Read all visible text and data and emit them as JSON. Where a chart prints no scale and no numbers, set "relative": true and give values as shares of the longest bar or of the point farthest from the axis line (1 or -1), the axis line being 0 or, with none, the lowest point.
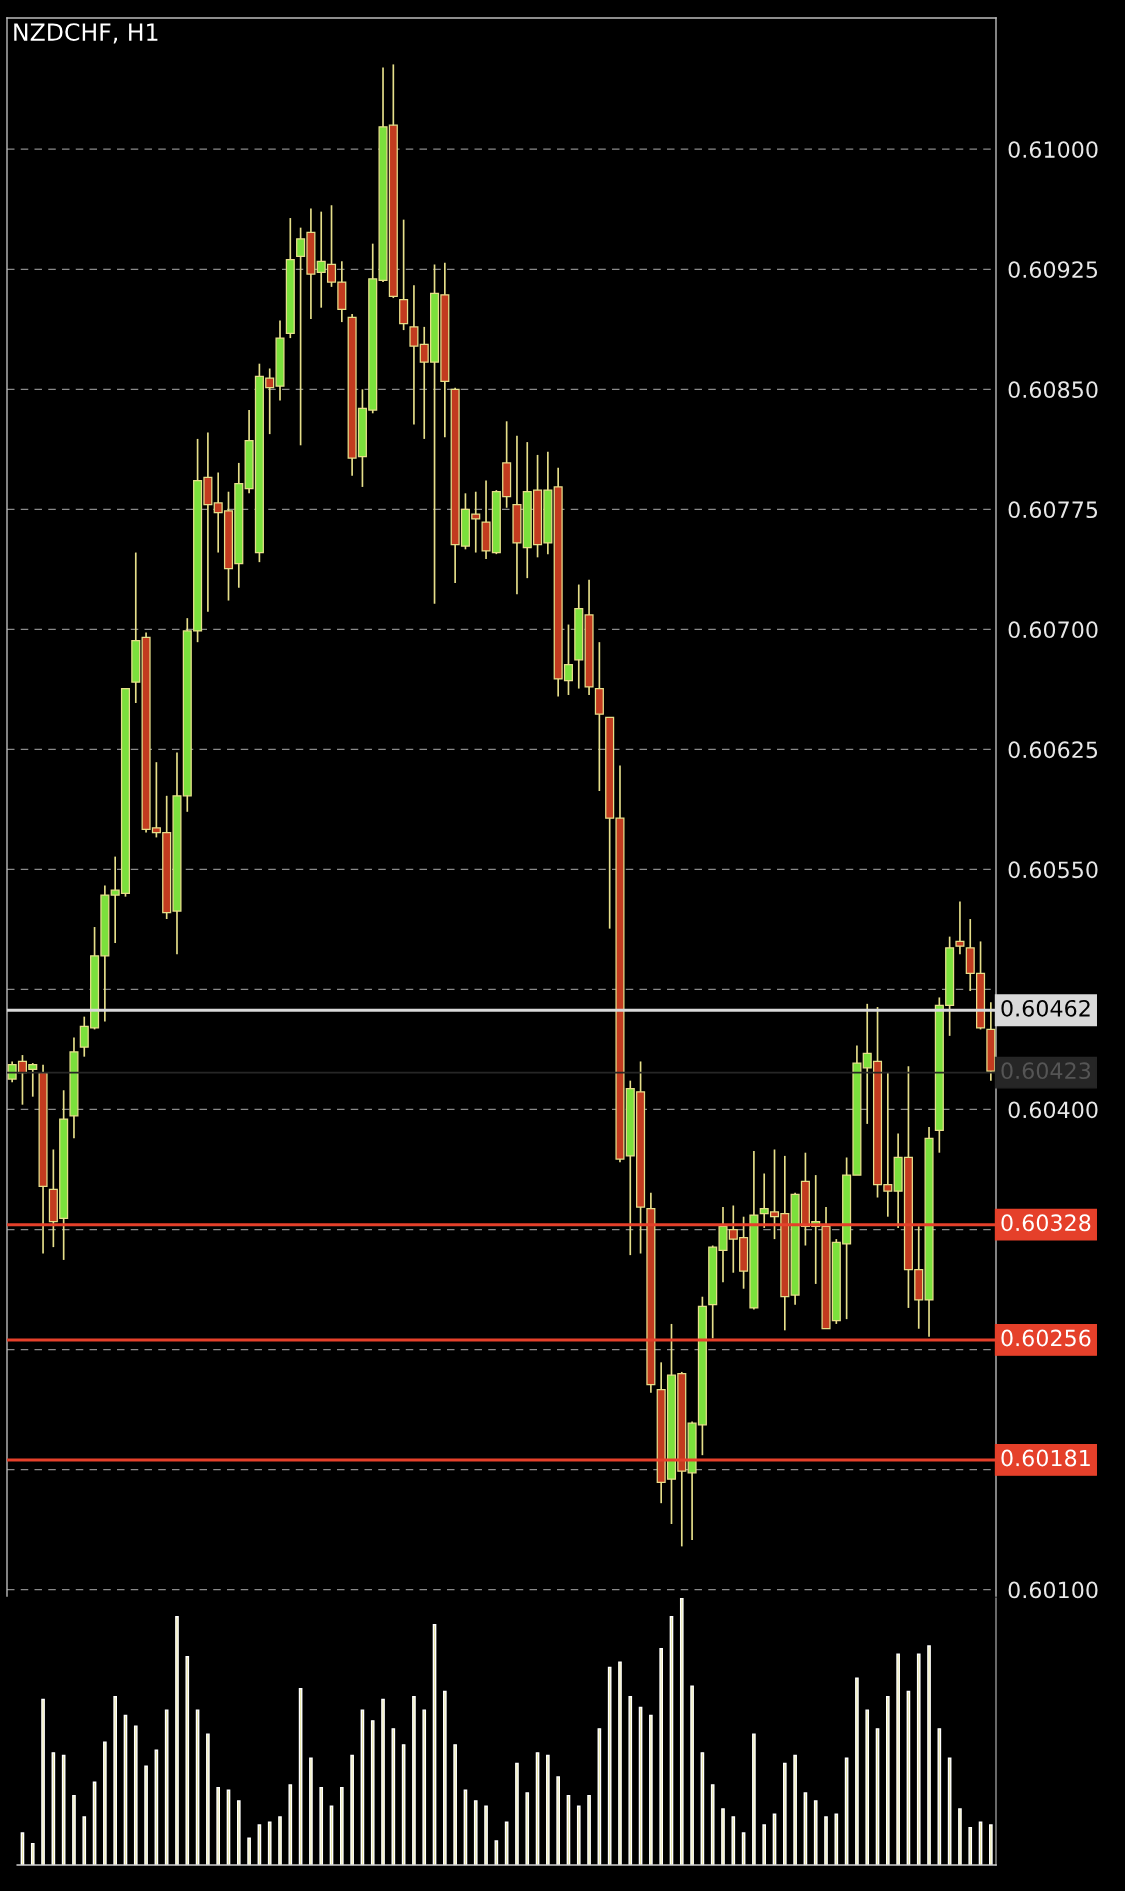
{
  "chart_data": [
    {
      "type": "candlestick",
      "title": "NZDCHF, H1",
      "categories": [
        null,
        null,
        null,
        null,
        null,
        null,
        null,
        null,
        null,
        null,
        null,
        null,
        null,
        null,
        null,
        null,
        null,
        null,
        null,
        null,
        null,
        null,
        null,
        null,
        null,
        null,
        null,
        null,
        null,
        null,
        null,
        null,
        null,
        null,
        null,
        null,
        null,
        null,
        null,
        null,
        null,
        null,
        null,
        null,
        null,
        null,
        null,
        null,
        null,
        null,
        null,
        null,
        null,
        null,
        null,
        null,
        null,
        null,
        null,
        null,
        null,
        null,
        null,
        null,
        null,
        null,
        null,
        null,
        null,
        null,
        null,
        null,
        null,
        null,
        null,
        null,
        null,
        null,
        null,
        null,
        null,
        null,
        null,
        null,
        null,
        null,
        null,
        null,
        null,
        null,
        null,
        null,
        null,
        null,
        null,
        null
      ],
      "ohlc": [
        [
          0.60419,
          0.6043,
          0.60417,
          0.60428
        ],
        [
          0.6043,
          0.60434,
          0.60403,
          0.60423
        ],
        [
          0.60425,
          0.60429,
          0.60408,
          0.60427
        ],
        [
          0.60423,
          0.60428,
          0.6031,
          0.60352
        ],
        [
          0.6035,
          0.60375,
          0.60314,
          0.6033
        ],
        [
          0.60332,
          0.60412,
          0.60306,
          0.60394
        ],
        [
          0.60396,
          0.60445,
          0.60382,
          0.60436
        ],
        [
          0.60439,
          0.60458,
          0.60433,
          0.60452
        ],
        [
          0.60451,
          0.60514,
          0.6045,
          0.60496
        ],
        [
          0.60496,
          0.6054,
          0.60455,
          0.60534
        ],
        [
          0.60534,
          0.60558,
          0.60504,
          0.60534
        ],
        [
          0.60535,
          0.60663,
          0.60533,
          0.60663
        ],
        [
          0.60667,
          0.60748,
          0.60654,
          0.60693
        ],
        [
          0.60695,
          0.60698,
          0.60573,
          0.60575
        ],
        [
          0.60574,
          0.60617,
          0.6057,
          0.60573
        ],
        [
          0.60573,
          0.60596,
          0.60519,
          0.60523
        ],
        [
          0.60524,
          0.60623,
          0.60497,
          0.60596
        ],
        [
          0.60596,
          0.60707,
          0.60586,
          0.60699
        ],
        [
          0.60699,
          0.60819,
          0.60692,
          0.60793
        ],
        [
          0.60795,
          0.60823,
          0.60711,
          0.60778
        ],
        [
          0.60779,
          0.60798,
          0.60748,
          0.60773
        ],
        [
          0.60774,
          0.60786,
          0.60718,
          0.60738
        ],
        [
          0.60741,
          0.60804,
          0.60726,
          0.60791
        ],
        [
          0.60788,
          0.60837,
          0.60785,
          0.60818
        ],
        [
          0.60748,
          0.60866,
          0.60742,
          0.60858
        ],
        [
          0.60857,
          0.60863,
          0.60822,
          0.60851
        ],
        [
          0.60852,
          0.60893,
          0.60843,
          0.60882
        ],
        [
          0.60885,
          0.60957,
          0.60882,
          0.60931
        ],
        [
          0.60933,
          0.60951,
          0.60815,
          0.60944
        ],
        [
          0.60948,
          0.60963,
          0.60894,
          0.60922
        ],
        [
          0.60923,
          0.60961,
          0.60901,
          0.6093
        ],
        [
          0.60928,
          0.60965,
          0.60914,
          0.60917
        ],
        [
          0.60917,
          0.6093,
          0.60892,
          0.609
        ],
        [
          0.60895,
          0.60897,
          0.60796,
          0.60807
        ],
        [
          0.60808,
          0.6085,
          0.60789,
          0.60838
        ],
        [
          0.60837,
          0.60941,
          0.60835,
          0.60919
        ],
        [
          0.60918,
          0.61051,
          0.60917,
          0.61014
        ],
        [
          0.61015,
          0.61053,
          0.60907,
          0.60908
        ],
        [
          0.60906,
          0.60956,
          0.60887,
          0.60891
        ],
        [
          0.60889,
          0.60915,
          0.60828,
          0.60877
        ],
        [
          0.60878,
          0.60889,
          0.60819,
          0.60867
        ],
        [
          0.60867,
          0.60928,
          0.60716,
          0.6091
        ],
        [
          0.60909,
          0.60929,
          0.6082,
          0.60855
        ],
        [
          0.6085,
          0.60851,
          0.60729,
          0.60753
        ],
        [
          0.60752,
          0.60785,
          0.6075,
          0.60775
        ],
        [
          0.60771,
          0.60786,
          0.60748,
          0.60769
        ],
        [
          0.60767,
          0.60793,
          0.60744,
          0.60749
        ],
        [
          0.60748,
          0.60787,
          0.60747,
          0.60786
        ],
        [
          0.60804,
          0.6083,
          0.60776,
          0.60783
        ],
        [
          0.60778,
          0.60821,
          0.60722,
          0.60754
        ],
        [
          0.60751,
          0.60817,
          0.60732,
          0.60786
        ],
        [
          0.60787,
          0.60809,
          0.60745,
          0.60753
        ],
        [
          0.60754,
          0.60811,
          0.60747,
          0.60787
        ],
        [
          0.60789,
          0.60801,
          0.60658,
          0.60669
        ],
        [
          0.60668,
          0.60703,
          0.60659,
          0.60678
        ],
        [
          0.60681,
          0.60728,
          0.60663,
          0.60713
        ],
        [
          0.60709,
          0.60731,
          0.60659,
          0.60664
        ],
        [
          0.60663,
          0.60692,
          0.60599,
          0.60647
        ],
        [
          0.60645,
          0.60645,
          0.60513,
          0.60582
        ],
        [
          0.60582,
          0.60615,
          0.60367,
          0.60369
        ],
        [
          0.60371,
          0.60418,
          0.60309,
          0.60413
        ],
        [
          0.60411,
          0.6043,
          0.6031,
          0.60339
        ],
        [
          0.60338,
          0.60348,
          0.60223,
          0.60228
        ],
        [
          0.60225,
          0.60242,
          0.60154,
          0.60167
        ],
        [
          0.60169,
          0.60266,
          0.60141,
          0.60234
        ],
        [
          0.60235,
          0.60236,
          0.60127,
          0.60174
        ],
        [
          0.60173,
          0.60205,
          0.60131,
          0.60204
        ],
        [
          0.60203,
          0.60283,
          0.60184,
          0.60277
        ],
        [
          0.60278,
          0.60315,
          0.60257,
          0.60314
        ],
        [
          0.60312,
          0.60339,
          0.60292,
          0.60327
        ],
        [
          0.60325,
          0.6034,
          0.60298,
          0.60319
        ],
        [
          0.6032,
          0.60333,
          0.60288,
          0.60299
        ],
        [
          0.60276,
          0.60374,
          0.60275,
          0.60334
        ],
        [
          0.60335,
          0.6036,
          0.60326,
          0.60335
        ],
        [
          0.60334,
          0.60375,
          0.60319,
          0.60333
        ],
        [
          0.60335,
          0.60371,
          0.60262,
          0.60283
        ],
        [
          0.60284,
          0.60348,
          0.60278,
          0.60347
        ],
        [
          0.60355,
          0.60373,
          0.60315,
          0.60327
        ],
        [
          0.60327,
          0.60359,
          0.60291,
          0.60327
        ],
        [
          0.60327,
          0.60339,
          0.60263,
          0.60263
        ],
        [
          0.60268,
          0.60319,
          0.60266,
          0.60317
        ],
        [
          0.60316,
          0.6037,
          0.60269,
          0.60359
        ],
        [
          0.60359,
          0.6044,
          0.60359,
          0.60429
        ],
        [
          0.60426,
          0.60466,
          0.60391,
          0.60435
        ],
        [
          0.6043,
          0.60464,
          0.60345,
          0.60353
        ],
        [
          0.60353,
          0.60423,
          0.60333,
          0.60349
        ],
        [
          0.60349,
          0.60385,
          0.60326,
          0.6037
        ],
        [
          0.6037,
          0.60427,
          0.60276,
          0.603
        ],
        [
          0.603,
          0.60327,
          0.60263,
          0.60281
        ],
        [
          0.60281,
          0.60389,
          0.60258,
          0.60382
        ],
        [
          0.60387,
          0.6047,
          0.60373,
          0.60465
        ],
        [
          0.60465,
          0.60508,
          0.60446,
          0.60501
        ],
        [
          0.60503,
          0.6053,
          0.60497,
          0.60502
        ],
        [
          0.60501,
          0.60519,
          0.60474,
          0.60485
        ],
        [
          0.60485,
          0.60505,
          0.6045,
          0.60451
        ],
        [
          0.6045,
          0.60467,
          0.60418,
          0.60424
        ]
      ],
      "colors": [
        "#7be03c",
        "#c23b1f",
        "#7be03c",
        "#c23b1f",
        "#c23b1f",
        "#7be03c",
        "#7be03c",
        "#7be03c",
        "#7be03c",
        "#7be03c",
        "#7be03c",
        "#7be03c",
        "#7be03c",
        "#c23b1f",
        "#c23b1f",
        "#c23b1f",
        "#7be03c",
        "#7be03c",
        "#7be03c",
        "#c23b1f",
        "#c23b1f",
        "#c23b1f",
        "#7be03c",
        "#7be03c",
        "#7be03c",
        "#c23b1f",
        "#7be03c",
        "#7be03c",
        "#7be03c",
        "#c23b1f",
        "#7be03c",
        "#c23b1f",
        "#c23b1f",
        "#c23b1f",
        "#7be03c",
        "#7be03c",
        "#7be03c",
        "#c23b1f",
        "#c23b1f",
        "#c23b1f",
        "#c23b1f",
        "#7be03c",
        "#c23b1f",
        "#c23b1f",
        "#7be03c",
        "#c23b1f",
        "#c23b1f",
        "#7be03c",
        "#c23b1f",
        "#c23b1f",
        "#7be03c",
        "#c23b1f",
        "#7be03c",
        "#c23b1f",
        "#7be03c",
        "#7be03c",
        "#c23b1f",
        "#c23b1f",
        "#c23b1f",
        "#c23b1f",
        "#7be03c",
        "#c23b1f",
        "#c23b1f",
        "#c23b1f",
        "#7be03c",
        "#c23b1f",
        "#7be03c",
        "#7be03c",
        "#7be03c",
        "#7be03c",
        "#c23b1f",
        "#c23b1f",
        "#7be03c",
        "#7be03c",
        "#c23b1f",
        "#c23b1f",
        "#7be03c",
        "#c23b1f",
        "#7be03c",
        "#c23b1f",
        "#7be03c",
        "#7be03c",
        "#7be03c",
        "#7be03c",
        "#c23b1f",
        "#c23b1f",
        "#7be03c",
        "#c23b1f",
        "#c23b1f",
        "#7be03c",
        "#7be03c",
        "#7be03c",
        "#c23b1f",
        "#c23b1f",
        "#c23b1f",
        "#c23b1f"
      ],
      "ylim": [
        0.60096,
        0.61082
      ],
      "yticks": [
        {
          "value": 0.61,
          "label": "0.61000"
        },
        {
          "value": 0.60925,
          "label": "0.60925"
        },
        {
          "value": 0.6085,
          "label": "0.60850"
        },
        {
          "value": 0.60775,
          "label": "0.60775"
        },
        {
          "value": 0.607,
          "label": "0.60700"
        },
        {
          "value": 0.60625,
          "label": "0.60625"
        },
        {
          "value": 0.6055,
          "label": "0.60550"
        },
        {
          "value": 0.60475,
          "label": null
        },
        {
          "value": 0.604,
          "label": "0.60400"
        },
        {
          "value": 0.60325,
          "label": null
        },
        {
          "value": 0.6025,
          "label": null
        },
        {
          "value": 0.60175,
          "label": null
        },
        {
          "value": 0.601,
          "label": "0.60100"
        }
      ],
      "tick_labels": "y",
      "grid": "y",
      "ref_lines": [
        {
          "axis": "y",
          "value": 0.60462,
          "label": "0.60462",
          "color": "#d9d9d9"
        },
        {
          "axis": "y",
          "value": 0.60423,
          "label": "0.60423",
          "color": "#262626"
        },
        {
          "axis": "y",
          "value": 0.60328,
          "label": "0.60328",
          "color": "#e5402a"
        },
        {
          "axis": "y",
          "value": 0.60256,
          "label": "0.60256",
          "color": "#e5402a"
        },
        {
          "axis": "y",
          "value": 0.60181,
          "label": "0.60181",
          "color": "#e5402a"
        }
      ]
    },
    {
      "type": "bar",
      "relative": true,
      "categories": [
        null,
        null,
        null,
        null,
        null,
        null,
        null,
        null,
        null,
        null,
        null,
        null,
        null,
        null,
        null,
        null,
        null,
        null,
        null,
        null,
        null,
        null,
        null,
        null,
        null,
        null,
        null,
        null,
        null,
        null,
        null,
        null,
        null,
        null,
        null,
        null,
        null,
        null,
        null,
        null,
        null,
        null,
        null,
        null,
        null,
        null,
        null,
        null,
        null,
        null,
        null,
        null,
        null,
        null,
        null,
        null,
        null,
        null,
        null,
        null,
        null,
        null,
        null,
        null,
        null,
        null,
        null,
        null,
        null,
        null,
        null,
        null,
        null,
        null,
        null,
        null,
        null,
        null,
        null,
        null,
        null,
        null,
        null,
        null,
        null,
        null,
        null,
        null,
        null,
        null,
        null,
        null,
        null,
        null,
        null
      ],
      "values": [
        0.12,
        0.08,
        0.62,
        0.42,
        0.41,
        0.26,
        0.18,
        0.31,
        0.46,
        0.63,
        0.56,
        0.52,
        0.37,
        0.43,
        0.58,
        0.93,
        0.78,
        0.58,
        0.49,
        0.29,
        0.28,
        0.24,
        0.1,
        0.15,
        0.16,
        0.18,
        0.3,
        0.66,
        0.4,
        0.29,
        0.22,
        0.29,
        0.41,
        0.58,
        0.54,
        0.62,
        0.51,
        0.45,
        0.63,
        0.58,
        0.9,
        0.65,
        0.45,
        0.28,
        0.24,
        0.22,
        0.09,
        0.16,
        0.38,
        0.27,
        0.42,
        0.41,
        0.33,
        0.26,
        0.22,
        0.26,
        0.51,
        0.74,
        0.76,
        0.63,
        0.59,
        0.56,
        0.81,
        0.93,
        1,
        0.67,
        0.42,
        0.3,
        0.21,
        0.18,
        0.12,
        0.49,
        0.15,
        0.19,
        0.38,
        0.41,
        0.27,
        0.24,
        0.18,
        0.19,
        0.4,
        0.7,
        0.58,
        0.51,
        0.63,
        0.79,
        0.65,
        0.79,
        0.82,
        0.51,
        0.4,
        0.21,
        0.14,
        0.16,
        0.15
      ],
      "color": "#e6e39a",
      "tick_labels": false
    }
  ]
}
